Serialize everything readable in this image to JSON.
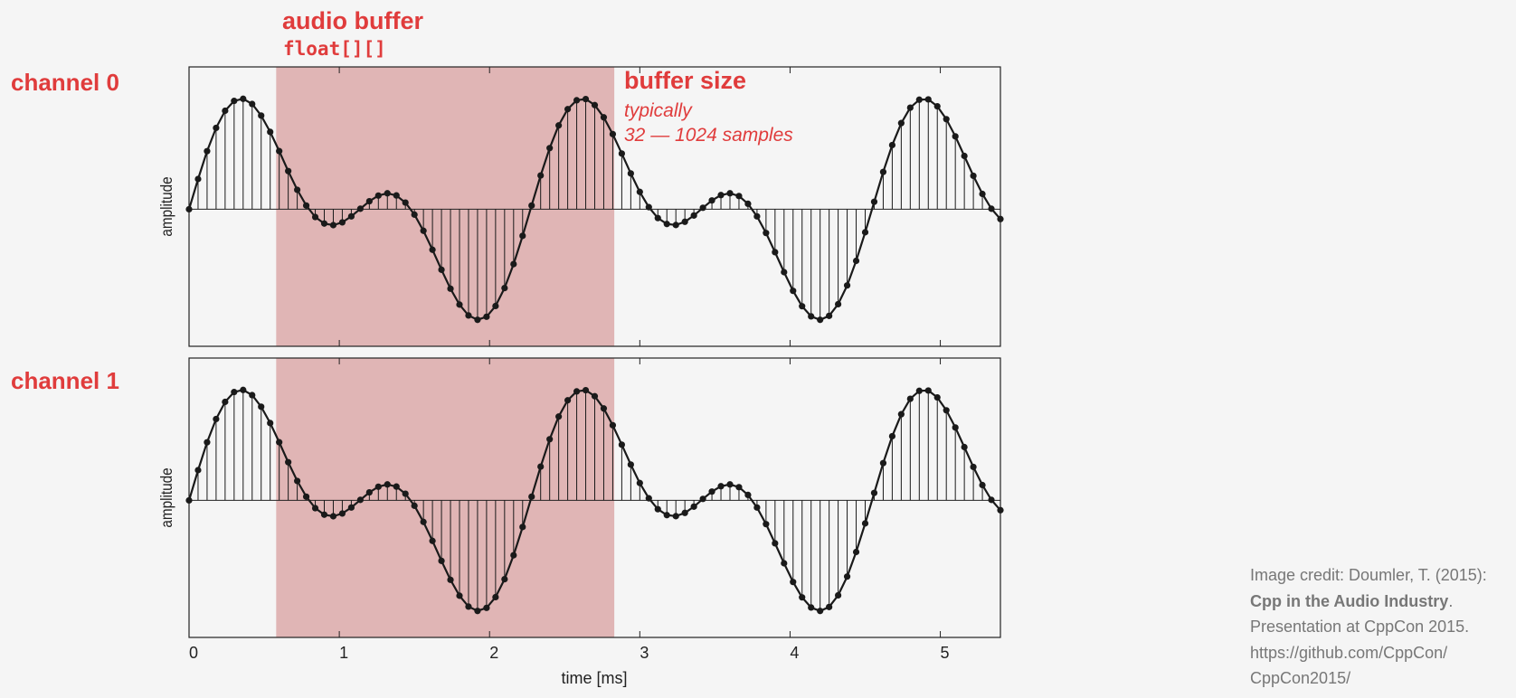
{
  "annotations": {
    "buffer_title": "audio buffer",
    "buffer_type": "float[][]",
    "buffer_size_title": "buffer size",
    "buffer_size_line1": "typically",
    "buffer_size_line2": "32 — 1024 samples"
  },
  "credit": {
    "line1": "Image credit: Doumler, T. (2015):",
    "title": "Cpp in the Audio Industry",
    "title_suffix": ".",
    "line3": "Presentation at CppCon 2015.",
    "line4": "https://github.com/CppCon/",
    "line5": "CppCon2015/"
  },
  "colors": {
    "accent": "#e03c3c",
    "highlight": "#dca9a9",
    "waveform": "#1a1a1a"
  },
  "chart_data": [
    {
      "type": "line",
      "panel_label": "channel 0",
      "ylabel": "amplitude",
      "xlabel": "",
      "xlim": [
        0,
        5.4
      ],
      "ylim": [
        -1.3,
        1.35
      ],
      "x_ticks": [
        "0",
        "1",
        "2",
        "3",
        "4",
        "5"
      ],
      "highlight_range": [
        0.58,
        2.83
      ],
      "sample_interval": 0.06,
      "components": [
        {
          "amplitude": 0.65,
          "frequency_khz": 0.44,
          "phase_deg": 0
        },
        {
          "amplitude": 0.55,
          "frequency_khz": 0.88,
          "phase_deg": 0
        }
      ],
      "markers": "stems-with-dots"
    },
    {
      "type": "line",
      "panel_label": "channel 1",
      "ylabel": "amplitude",
      "xlabel": "time [ms]",
      "xlim": [
        0,
        5.4
      ],
      "ylim": [
        -1.3,
        1.35
      ],
      "x_ticks": [
        "0",
        "1",
        "2",
        "3",
        "4",
        "5"
      ],
      "highlight_range": [
        0.58,
        2.83
      ],
      "sample_interval": 0.06,
      "components": [
        {
          "amplitude": 0.65,
          "frequency_khz": 0.44,
          "phase_deg": 0
        },
        {
          "amplitude": 0.55,
          "frequency_khz": 0.88,
          "phase_deg": 0
        }
      ],
      "markers": "stems-with-dots"
    }
  ]
}
